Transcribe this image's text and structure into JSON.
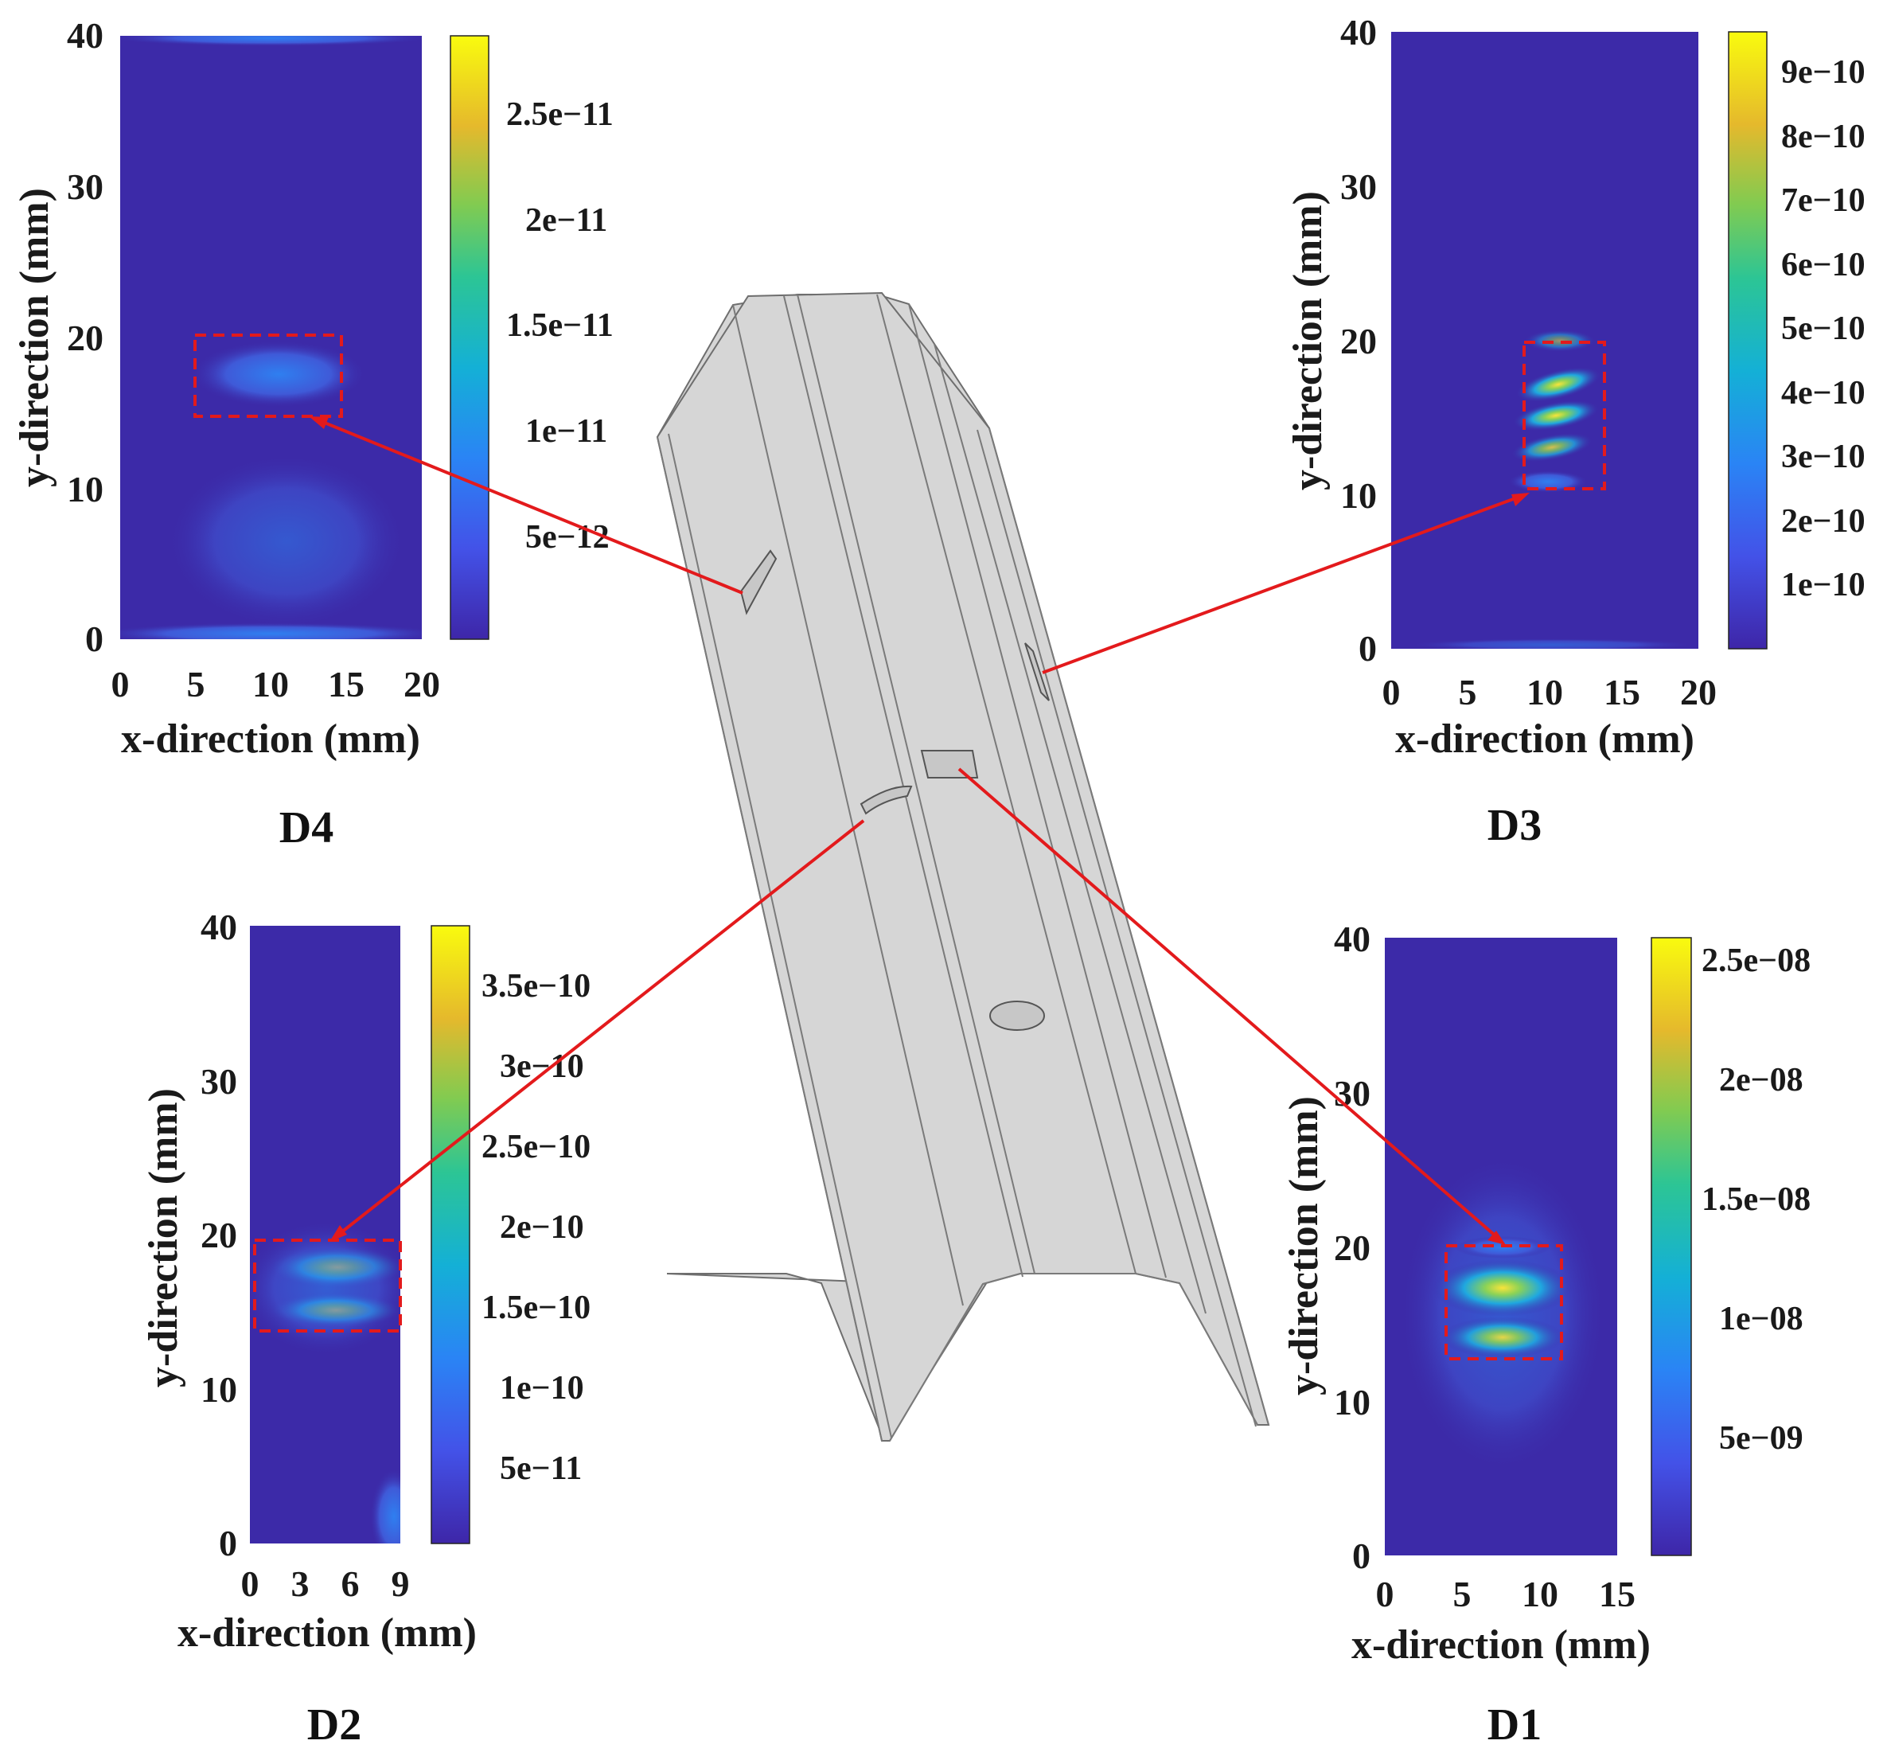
{
  "chart_data": [
    {
      "id": "D4",
      "type": "heatmap",
      "title": "D4",
      "xlabel": "x-direction (mm)",
      "ylabel": "y-direction (mm)",
      "xlim": [
        0,
        20
      ],
      "ylim": [
        0,
        40
      ],
      "xticks": [
        "0",
        "5",
        "10",
        "15",
        "20"
      ],
      "yticks": [
        "0",
        "10",
        "20",
        "30",
        "40"
      ],
      "colorbar": {
        "ticks": [
          "5e−12",
          "1e−11",
          "1.5e−11",
          "2e−11",
          "2.5e−11"
        ],
        "values": [
          5e-12,
          1e-11,
          1.5e-11,
          2e-11,
          2.5e-11
        ],
        "range": [
          0,
          2.85e-11
        ]
      },
      "highlight_region": {
        "x": [
          5,
          15
        ],
        "y": [
          15,
          20
        ]
      },
      "hotspots": [
        {
          "x": 10,
          "y": 17.5,
          "intensity": 0.45
        },
        {
          "x": 10,
          "y": 8,
          "intensity": 0.15
        },
        {
          "x": 10,
          "y": 0.5,
          "intensity": 0.35
        },
        {
          "x": 10,
          "y": 40,
          "intensity": 0.2
        }
      ]
    },
    {
      "id": "D3",
      "type": "heatmap",
      "title": "D3",
      "xlabel": "x-direction (mm)",
      "ylabel": "y-direction (mm)",
      "xlim": [
        0,
        20
      ],
      "ylim": [
        0,
        40
      ],
      "xticks": [
        "0",
        "5",
        "10",
        "15",
        "20"
      ],
      "yticks": [
        "0",
        "10",
        "20",
        "30",
        "40"
      ],
      "colorbar": {
        "ticks": [
          "1e−10",
          "2e−10",
          "3e−10",
          "4e−10",
          "5e−10",
          "6e−10",
          "7e−10",
          "8e−10",
          "9e−10"
        ],
        "values": [
          1e-10,
          2e-10,
          3e-10,
          4e-10,
          5e-10,
          6e-10,
          7e-10,
          8e-10,
          9e-10
        ],
        "range": [
          0,
          9.6e-10
        ]
      },
      "highlight_region": {
        "x": [
          8.5,
          14
        ],
        "y": [
          10.5,
          20
        ]
      },
      "hotspots": [
        {
          "x": 11,
          "y": 17,
          "intensity": 0.8
        },
        {
          "x": 11,
          "y": 15,
          "intensity": 0.75
        },
        {
          "x": 11,
          "y": 13,
          "intensity": 0.6
        },
        {
          "x": 11,
          "y": 19.5,
          "intensity": 0.35
        }
      ]
    },
    {
      "id": "D2",
      "type": "heatmap",
      "title": "D2",
      "xlabel": "x-direction (mm)",
      "ylabel": "y-direction (mm)",
      "xlim": [
        0,
        9
      ],
      "ylim": [
        0,
        40
      ],
      "xticks": [
        "0",
        "3",
        "6",
        "9"
      ],
      "yticks": [
        "0",
        "10",
        "20",
        "30",
        "40"
      ],
      "colorbar": {
        "ticks": [
          "5e−11",
          "1e−10",
          "1.5e−10",
          "2e−10",
          "2.5e−10",
          "3e−10",
          "3.5e−10"
        ],
        "values": [
          5e-11,
          1e-10,
          1.5e-10,
          2e-10,
          2.5e-10,
          3e-10,
          3.5e-10
        ],
        "range": [
          0,
          3.9e-10
        ]
      },
      "highlight_region": {
        "x": [
          0.3,
          9
        ],
        "y": [
          14,
          20
        ]
      },
      "hotspots": [
        {
          "x": 5,
          "y": 18,
          "intensity": 0.8
        },
        {
          "x": 5,
          "y": 15.3,
          "intensity": 0.75
        }
      ]
    },
    {
      "id": "D1",
      "type": "heatmap",
      "title": "D1",
      "xlabel": "x-direction (mm)",
      "ylabel": "y-direction (mm)",
      "xlim": [
        0,
        15
      ],
      "ylim": [
        0,
        40
      ],
      "xticks": [
        "0",
        "5",
        "10",
        "15"
      ],
      "yticks": [
        "0",
        "10",
        "20",
        "30",
        "40"
      ],
      "colorbar": {
        "ticks": [
          "5e−09",
          "1e−08",
          "1.5e−08",
          "2e−08",
          "2.5e−08"
        ],
        "values": [
          5e-09,
          1e-08,
          1.5e-08,
          2e-08,
          2.5e-08
        ],
        "range": [
          0,
          2.6e-08
        ]
      },
      "highlight_region": {
        "x": [
          3,
          11
        ],
        "y": [
          12.5,
          20
        ]
      },
      "hotspots": [
        {
          "x": 7.5,
          "y": 17,
          "intensity": 0.85
        },
        {
          "x": 7.5,
          "y": 14,
          "intensity": 0.65
        }
      ]
    }
  ]
}
